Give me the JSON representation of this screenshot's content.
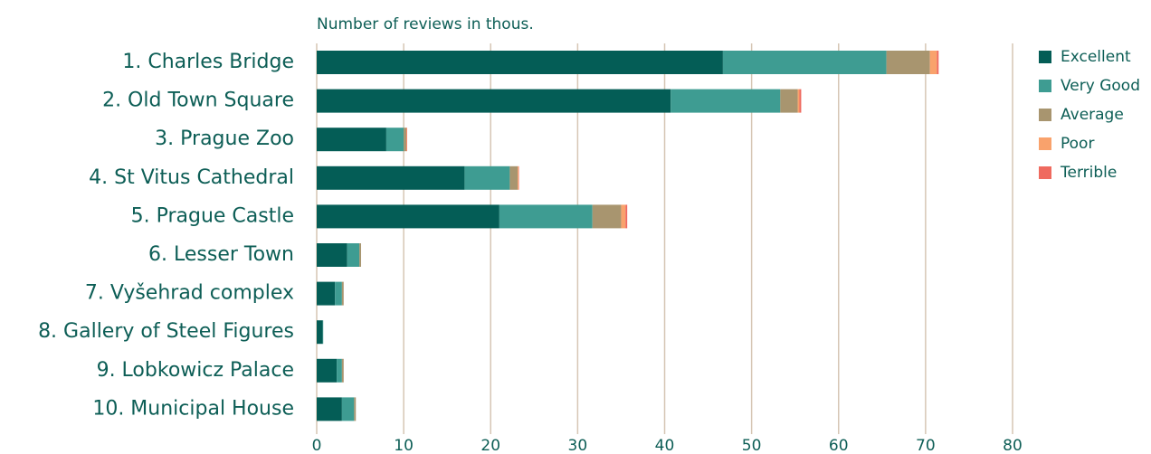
{
  "chart_data": {
    "type": "stacked-barh",
    "xlabel": "Number of reviews in thous.",
    "categories": [
      "1. Charles Bridge",
      "2. Old Town Square",
      "3. Prague Zoo",
      "4. St Vitus Cathedral",
      "5. Prague Castle",
      "6. Lesser Town",
      "7. Vyšehrad complex",
      "8. Gallery of Steel Figures",
      "9. Lobkowicz Palace",
      "10. Municipal House"
    ],
    "series": [
      {
        "name": "Excellent",
        "color": "#045d56",
        "values": [
          46.7,
          40.7,
          8.0,
          17.0,
          21.0,
          3.5,
          2.1,
          0.7,
          2.3,
          2.9
        ]
      },
      {
        "name": "Very Good",
        "color": "#3e9c92",
        "values": [
          18.8,
          12.6,
          2.0,
          5.2,
          10.7,
          1.4,
          0.8,
          0.05,
          0.6,
          1.4
        ]
      },
      {
        "name": "Average",
        "color": "#a8956f",
        "values": [
          5.0,
          2.0,
          0.3,
          0.9,
          3.3,
          0.2,
          0.2,
          0,
          0.2,
          0.2
        ]
      },
      {
        "name": "Poor",
        "color": "#f9a26c",
        "values": [
          0.8,
          0.2,
          0.05,
          0.1,
          0.5,
          0,
          0,
          0,
          0,
          0
        ]
      },
      {
        "name": "Terrible",
        "color": "#ef6a5f",
        "values": [
          0.2,
          0.2,
          0.05,
          0.05,
          0.2,
          0,
          0,
          0,
          0,
          0
        ]
      }
    ],
    "xlim": [
      0,
      80
    ],
    "xticks": [
      0,
      10,
      20,
      30,
      40,
      50,
      60,
      70,
      80
    ],
    "grid": true,
    "legend": "right"
  }
}
